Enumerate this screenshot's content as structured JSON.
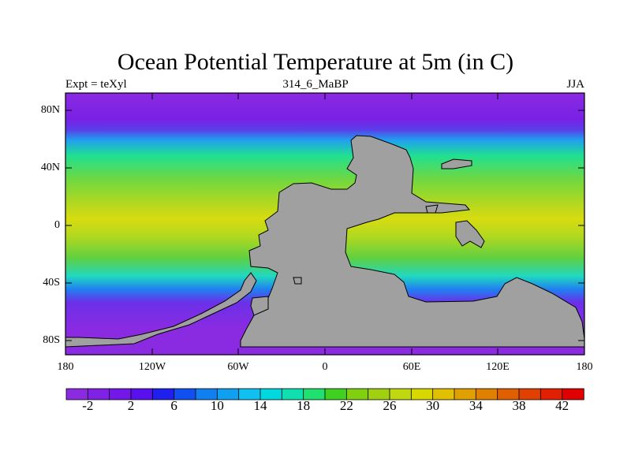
{
  "header": {
    "title": "Ocean Potential Temperature at 5m (in C)",
    "left_label": "Expt = teXyl",
    "center_label": "314_6_MaBP",
    "right_label": "JJA"
  },
  "map": {
    "lat_labels": [
      "80N",
      "40N",
      "0",
      "40S",
      "80S"
    ],
    "lon_labels": [
      "180",
      "120W",
      "60W",
      "0",
      "60E",
      "120E",
      "180"
    ],
    "land_color": "#a0a0a0",
    "ocean_color_scale": "violet-blue-cyan-green-yellow-orange-red"
  },
  "colorbar": {
    "labels": [
      "-2",
      "2",
      "6",
      "10",
      "14",
      "18",
      "22",
      "26",
      "30",
      "34",
      "38",
      "42"
    ],
    "colors": [
      "#8a2be2",
      "#7f22e6",
      "#7418ea",
      "#5a10ee",
      "#2020ee",
      "#1050f0",
      "#1080f0",
      "#10a0f0",
      "#10c0f0",
      "#00d8e0",
      "#10e0b0",
      "#20e070",
      "#40d020",
      "#80d010",
      "#a0d010",
      "#c0d810",
      "#d8d800",
      "#e0c000",
      "#e0a000",
      "#e08000",
      "#e06000",
      "#e04000",
      "#e02000",
      "#e00000"
    ]
  }
}
